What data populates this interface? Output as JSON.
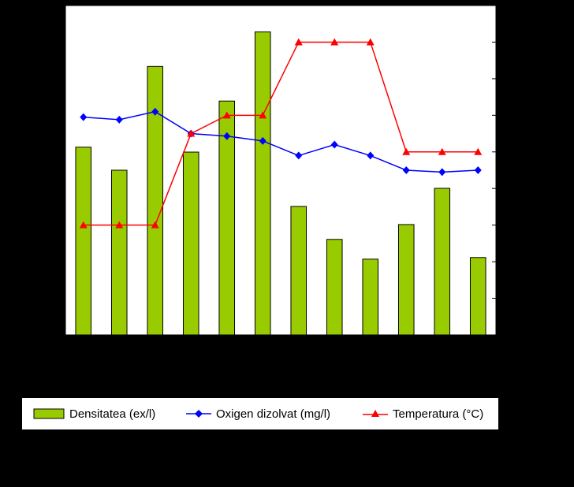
{
  "chart_data": {
    "type": "bar",
    "categories": [
      "",
      "",
      "",
      "",
      "",
      "",
      "",
      "",
      "",
      "",
      "",
      ""
    ],
    "series": [
      {
        "name": "Densitatea (ex/l)",
        "type": "bar",
        "axis": "left",
        "color": "#99cc00",
        "values": [
          5.7,
          5.0,
          8.15,
          5.55,
          7.1,
          9.2,
          3.9,
          2.9,
          2.3,
          3.35,
          4.45,
          2.35
        ]
      },
      {
        "name": "Oxigen dizolvat (mg/l)",
        "type": "line",
        "axis": "right",
        "color": "#0000ff",
        "marker": "diamond",
        "values": [
          5.95,
          5.88,
          6.1,
          5.5,
          5.43,
          5.3,
          4.9,
          5.2,
          4.9,
          4.5,
          4.45,
          4.5
        ]
      },
      {
        "name": "Temperatura (°C)",
        "type": "line",
        "axis": "right",
        "color": "#ff0000",
        "marker": "triangle",
        "values": [
          3,
          3,
          3,
          5.5,
          6,
          6,
          8,
          8,
          8,
          5,
          5,
          5
        ]
      }
    ],
    "ylim_left": [
      0,
      10
    ],
    "ylim_right": [
      0,
      9
    ],
    "grid": false,
    "legend_position": "bottom"
  },
  "legend": {
    "items": [
      {
        "label": "Densitatea (ex/l)",
        "symbol": "bar"
      },
      {
        "label": "Oxigen dizolvat (mg/l)",
        "symbol": "diamond-line"
      },
      {
        "label": "Temperatura (°C)",
        "symbol": "triangle-line"
      }
    ]
  }
}
